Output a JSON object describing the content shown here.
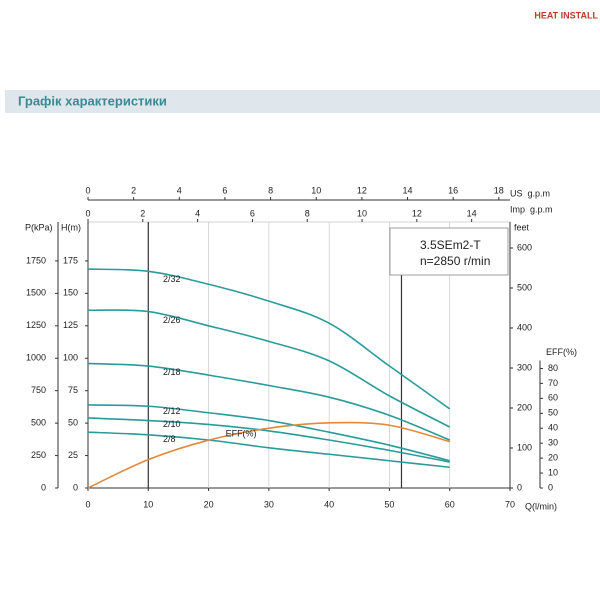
{
  "logo": {
    "text": "HEAT INSTALL"
  },
  "header": {
    "title": "Графік характеристики"
  },
  "chart_data": {
    "type": "line",
    "model_label": "3.5SEm2-T",
    "speed_label": "n=2850 r/min",
    "x": [
      0,
      10,
      20,
      30,
      40,
      50,
      60
    ],
    "xlim": [
      0,
      70
    ],
    "xticks": [
      0,
      10,
      20,
      30,
      40,
      50,
      60,
      70
    ],
    "xlabel": "Q(l/min)",
    "ylim": [
      0,
      205
    ],
    "yticks": [
      0,
      25,
      50,
      75,
      100,
      125,
      150,
      175
    ],
    "ylabel": "H(m)",
    "pressure_axis": {
      "label": "P(kPa)",
      "lim": [
        0,
        2050
      ],
      "ticks": [
        0,
        250,
        500,
        750,
        1000,
        1250,
        1500,
        1750
      ]
    },
    "feet_axis": {
      "label": "feet",
      "lim": [
        0,
        665
      ],
      "ticks": [
        0,
        100,
        200,
        300,
        400,
        500,
        600
      ]
    },
    "eff_axis": {
      "label": "EFF(%)",
      "lim": [
        0,
        178
      ],
      "ticks": [
        0,
        10,
        20,
        30,
        40,
        50,
        60,
        70,
        80
      ]
    },
    "us_axis": {
      "label": "US  g.p.m",
      "lim": [
        0,
        18.49
      ],
      "ticks": [
        0,
        2,
        4,
        6,
        8,
        10,
        12,
        14,
        16,
        18
      ]
    },
    "imp_axis": {
      "label": "Imp  g.p.m",
      "lim": [
        0,
        15.4
      ],
      "ticks": [
        0,
        2,
        4,
        6,
        8,
        10,
        12,
        14
      ]
    },
    "grid": true,
    "range_lines": [
      10,
      52
    ],
    "series": [
      {
        "name": "2/32",
        "color": "#2a9b9b",
        "values": [
          168.7,
          167,
          157,
          144,
          127,
          94,
          61
        ]
      },
      {
        "name": "2/26",
        "color": "#2a9b9b",
        "values": [
          137,
          136,
          125,
          113,
          98,
          71,
          47
        ]
      },
      {
        "name": "2/18",
        "color": "#2a9b9b",
        "values": [
          96,
          94,
          87,
          79,
          70,
          56,
          37
        ]
      },
      {
        "name": "2/12",
        "color": "#2a9b9b",
        "values": [
          64,
          63,
          58,
          52,
          43,
          33,
          21
        ]
      },
      {
        "name": "2/10",
        "color": "#2a9b9b",
        "values": [
          54,
          52,
          49,
          44,
          37,
          29,
          20
        ]
      },
      {
        "name": "2/8",
        "color": "#2a9b9b",
        "values": [
          43,
          41,
          37,
          31,
          26,
          21,
          16
        ]
      },
      {
        "name": "EFF(%)",
        "color": "#e5883a",
        "axis": "eff",
        "values": [
          0,
          19,
          32,
          40,
          43.6,
          42,
          31
        ]
      }
    ]
  }
}
